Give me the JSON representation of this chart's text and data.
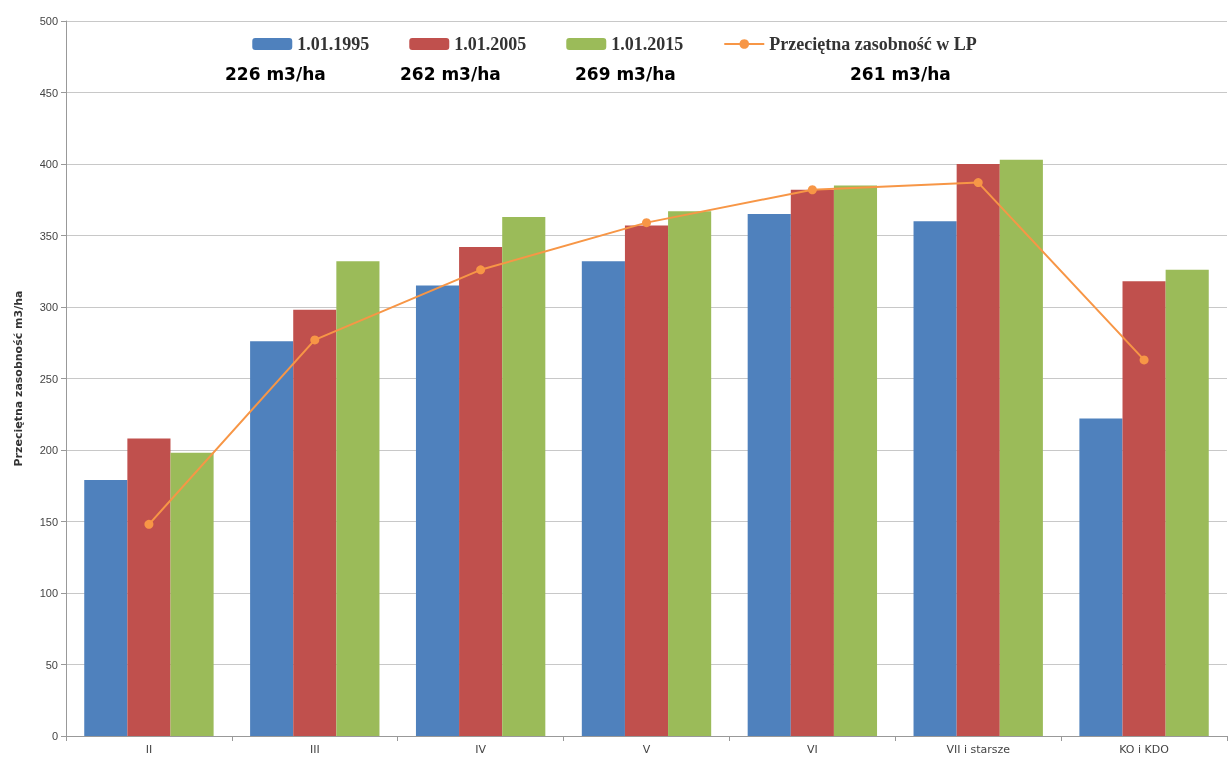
{
  "chart_data": {
    "type": "bar",
    "ylabel": "Przeciętna zasobność m3/ha",
    "categories": [
      "II",
      "III",
      "IV",
      "V",
      "VI",
      "VII i starsze",
      "KO i KDO"
    ],
    "series": [
      {
        "name": "1.01.1995",
        "color": "#4f81bd",
        "values": [
          179,
          276,
          315,
          332,
          365,
          360,
          222
        ]
      },
      {
        "name": "1.01.2005",
        "color": "#c0504d",
        "values": [
          208,
          298,
          342,
          357,
          382,
          400,
          318
        ]
      },
      {
        "name": "1.01.2015",
        "color": "#9bbb59",
        "values": [
          198,
          332,
          363,
          367,
          385,
          403,
          326
        ]
      },
      {
        "name": "Przeciętna zasobność w LP",
        "type": "line",
        "color": "#f79646",
        "marker": "circle",
        "values": [
          148,
          277,
          326,
          359,
          382,
          387,
          263
        ]
      }
    ],
    "annotations": [
      "226 m3/ha",
      "262 m3/ha",
      "269 m3/ha",
      "261 m3/ha"
    ],
    "ylim": [
      0,
      500
    ],
    "yticks": [
      0,
      50,
      100,
      150,
      200,
      250,
      300,
      350,
      400,
      450,
      500
    ],
    "grid": "y",
    "legend": "top"
  }
}
